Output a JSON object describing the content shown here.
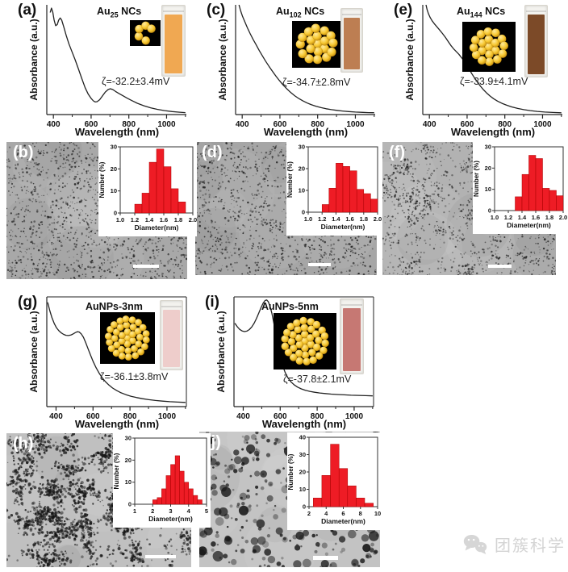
{
  "colors": {
    "bar_red": "#ee1c25",
    "bar_edge": "#a80000",
    "curve": "#222222",
    "axis": "#222222",
    "watermark_gray": "#d4d4d4",
    "gold_light": "#ffeb9e",
    "gold_mid": "#f7c832",
    "gold_dark": "#b97f05"
  },
  "spectra": [
    {
      "panel": "(a)",
      "title_prefix": "Au",
      "title_sub": "25",
      "title_suffix": " NCs",
      "zeta": "ζ=-32.2±3.4mV",
      "xlabel": "Wavelength (nm)",
      "ylabel": "Absorbance (a.u.)",
      "cuvette_color": "#f0a852"
    },
    {
      "panel": "(c)",
      "title_prefix": "Au",
      "title_sub": "102",
      "title_suffix": " NCs",
      "zeta": "ζ=-34.7±2.8mV",
      "xlabel": "Wavelength (nm)",
      "ylabel": "Absorbance (a.u.)",
      "cuvette_color": "#bd7e52"
    },
    {
      "panel": "(e)",
      "title_prefix": "Au",
      "title_sub": "144",
      "title_suffix": " NCs",
      "zeta": "ζ=-33.9±4.1mV",
      "xlabel": "Wavelength (nm)",
      "ylabel": "Absorbance (a.u.)",
      "cuvette_color": "#7c4a28"
    },
    {
      "panel": "(g)",
      "title_prefix": "AuNPs-3nm",
      "title_sub": "",
      "title_suffix": "",
      "zeta": "ζ=-36.1±3.8mV",
      "xlabel": "Wavelength (nm)",
      "ylabel": "Absorbance (a.u.)",
      "cuvette_color": "#eecdcb"
    },
    {
      "panel": "(i)",
      "title_prefix": "AuNPs-5nm",
      "title_sub": "",
      "title_suffix": "",
      "zeta": "ζ=-37.8±2.1mV",
      "xlabel": "Wavelength (nm)",
      "ylabel": "Absorbance (a.u.)",
      "cuvette_color": "#c67873"
    }
  ],
  "tem": [
    {
      "panel": "(b)",
      "bg": "#a8a8a8",
      "texture": "fine"
    },
    {
      "panel": "(d)",
      "bg": "#a6a6a6",
      "texture": "fine"
    },
    {
      "panel": "(f)",
      "bg": "#b2b2b2",
      "texture": "fine2"
    },
    {
      "panel": "(h)",
      "bg": "#c0c0c0",
      "texture": "chains"
    },
    {
      "panel": "(j)",
      "bg": "#c3c3c3",
      "texture": "large"
    }
  ],
  "watermark": {
    "text": "团簇科学"
  },
  "chart_data": [
    {
      "id": "spec-a",
      "type": "line",
      "title": "Au25 NCs",
      "annotation": "ζ=-32.2±3.4mV",
      "xlabel": "Wavelength (nm)",
      "ylabel": "Absorbance (a.u.)",
      "xlim": [
        365,
        1105
      ],
      "xticks": [
        "400",
        "600",
        "800",
        "1000"
      ],
      "xticks_minor": [
        500,
        700,
        900,
        1100
      ],
      "frame": false,
      "points": [
        [
          383,
          0.93
        ],
        [
          390,
          0.97
        ],
        [
          397,
          0.93
        ],
        [
          404,
          0.86
        ],
        [
          412,
          0.81
        ],
        [
          420,
          0.82
        ],
        [
          428,
          0.86
        ],
        [
          436,
          0.88
        ],
        [
          444,
          0.86
        ],
        [
          455,
          0.8
        ],
        [
          468,
          0.72
        ],
        [
          482,
          0.645
        ],
        [
          498,
          0.575
        ],
        [
          515,
          0.5
        ],
        [
          532,
          0.42
        ],
        [
          550,
          0.33
        ],
        [
          568,
          0.245
        ],
        [
          585,
          0.185
        ],
        [
          600,
          0.148
        ],
        [
          612,
          0.125
        ],
        [
          622,
          0.115
        ],
        [
          632,
          0.118
        ],
        [
          645,
          0.135
        ],
        [
          660,
          0.17
        ],
        [
          675,
          0.205
        ],
        [
          690,
          0.228
        ],
        [
          702,
          0.235
        ],
        [
          715,
          0.228
        ],
        [
          730,
          0.21
        ],
        [
          748,
          0.192
        ],
        [
          768,
          0.172
        ],
        [
          790,
          0.15
        ],
        [
          815,
          0.128
        ],
        [
          845,
          0.103
        ],
        [
          880,
          0.08
        ],
        [
          915,
          0.062
        ],
        [
          950,
          0.048
        ],
        [
          990,
          0.036
        ],
        [
          1030,
          0.027
        ],
        [
          1070,
          0.021
        ],
        [
          1100,
          0.018
        ]
      ]
    },
    {
      "id": "spec-c",
      "type": "line",
      "title": "Au102 NCs",
      "annotation": "ζ=-34.7±2.8mV",
      "xlabel": "Wavelength (nm)",
      "ylabel": "Absorbance (a.u.)",
      "xlim": [
        365,
        1105
      ],
      "xticks": [
        "400",
        "600",
        "800",
        "1000"
      ],
      "xticks_minor": [
        500,
        700,
        900,
        1100
      ],
      "frame": false,
      "points": [
        [
          383,
          1.0
        ],
        [
          392,
          0.945
        ],
        [
          402,
          0.895
        ],
        [
          414,
          0.845
        ],
        [
          428,
          0.79
        ],
        [
          443,
          0.735
        ],
        [
          458,
          0.685
        ],
        [
          474,
          0.635
        ],
        [
          490,
          0.585
        ],
        [
          507,
          0.535
        ],
        [
          524,
          0.487
        ],
        [
          542,
          0.44
        ],
        [
          560,
          0.395
        ],
        [
          579,
          0.35
        ],
        [
          598,
          0.308
        ],
        [
          618,
          0.268
        ],
        [
          638,
          0.232
        ],
        [
          658,
          0.2
        ],
        [
          678,
          0.172
        ],
        [
          700,
          0.146
        ],
        [
          722,
          0.124
        ],
        [
          745,
          0.105
        ],
        [
          768,
          0.089
        ],
        [
          792,
          0.075
        ],
        [
          818,
          0.063
        ],
        [
          845,
          0.053
        ],
        [
          873,
          0.045
        ],
        [
          902,
          0.038
        ],
        [
          932,
          0.032
        ],
        [
          965,
          0.027
        ],
        [
          1000,
          0.023
        ],
        [
          1040,
          0.02
        ],
        [
          1070,
          0.018
        ],
        [
          1100,
          0.017
        ]
      ]
    },
    {
      "id": "spec-e",
      "type": "line",
      "title": "Au144 NCs",
      "annotation": "ζ=-33.9±4.1mV",
      "xlabel": "Wavelength (nm)",
      "ylabel": "Absorbance (a.u.)",
      "xlim": [
        365,
        1105
      ],
      "xticks": [
        "400",
        "600",
        "800",
        "1000"
      ],
      "xticks_minor": [
        500,
        700,
        900,
        1100
      ],
      "frame": false,
      "points": [
        [
          382,
          1.0
        ],
        [
          388,
          0.955
        ],
        [
          395,
          0.92
        ],
        [
          404,
          0.885
        ],
        [
          414,
          0.855
        ],
        [
          426,
          0.828
        ],
        [
          440,
          0.8
        ],
        [
          455,
          0.77
        ],
        [
          470,
          0.738
        ],
        [
          485,
          0.703
        ],
        [
          500,
          0.665
        ],
        [
          514,
          0.63
        ],
        [
          528,
          0.6
        ],
        [
          542,
          0.575
        ],
        [
          556,
          0.55
        ],
        [
          570,
          0.52
        ],
        [
          584,
          0.487
        ],
        [
          598,
          0.45
        ],
        [
          612,
          0.41
        ],
        [
          626,
          0.37
        ],
        [
          640,
          0.332
        ],
        [
          655,
          0.295
        ],
        [
          670,
          0.26
        ],
        [
          686,
          0.228
        ],
        [
          703,
          0.198
        ],
        [
          721,
          0.17
        ],
        [
          740,
          0.145
        ],
        [
          762,
          0.122
        ],
        [
          785,
          0.102
        ],
        [
          810,
          0.085
        ],
        [
          838,
          0.069
        ],
        [
          868,
          0.056
        ],
        [
          900,
          0.045
        ],
        [
          935,
          0.036
        ],
        [
          972,
          0.029
        ],
        [
          1012,
          0.023
        ],
        [
          1055,
          0.019
        ],
        [
          1100,
          0.016
        ]
      ]
    },
    {
      "id": "spec-g",
      "type": "line",
      "title": "AuNPs-3nm",
      "annotation": "ζ=-36.1±3.8mV",
      "xlabel": "Wavelength (nm)",
      "ylabel": "Absorbance (a.u.)",
      "xlim": [
        350,
        1105
      ],
      "xticks": [
        "400",
        "600",
        "800",
        "1000"
      ],
      "xticks_minor": [
        500,
        700,
        900,
        1100
      ],
      "frame": true,
      "points": [
        [
          355,
          0.95
        ],
        [
          366,
          0.875
        ],
        [
          378,
          0.81
        ],
        [
          390,
          0.758
        ],
        [
          402,
          0.72
        ],
        [
          415,
          0.692
        ],
        [
          428,
          0.672
        ],
        [
          441,
          0.658
        ],
        [
          454,
          0.65
        ],
        [
          467,
          0.648
        ],
        [
          480,
          0.652
        ],
        [
          492,
          0.662
        ],
        [
          504,
          0.674
        ],
        [
          515,
          0.682
        ],
        [
          525,
          0.68
        ],
        [
          536,
          0.664
        ],
        [
          548,
          0.632
        ],
        [
          560,
          0.585
        ],
        [
          573,
          0.528
        ],
        [
          587,
          0.468
        ],
        [
          601,
          0.41
        ],
        [
          616,
          0.356
        ],
        [
          632,
          0.308
        ],
        [
          649,
          0.265
        ],
        [
          667,
          0.228
        ],
        [
          686,
          0.196
        ],
        [
          706,
          0.169
        ],
        [
          728,
          0.146
        ],
        [
          752,
          0.126
        ],
        [
          778,
          0.109
        ],
        [
          806,
          0.094
        ],
        [
          836,
          0.082
        ],
        [
          868,
          0.072
        ],
        [
          902,
          0.063
        ],
        [
          938,
          0.056
        ],
        [
          976,
          0.05
        ],
        [
          1016,
          0.045
        ],
        [
          1058,
          0.041
        ],
        [
          1100,
          0.038
        ]
      ]
    },
    {
      "id": "spec-i",
      "type": "line",
      "title": "AuNPs-5nm",
      "annotation": "ζ=-37.8±2.1mV",
      "xlabel": "Wavelength (nm)",
      "ylabel": "Absorbance (a.u.)",
      "xlim": [
        350,
        1105
      ],
      "xticks": [
        "400",
        "600",
        "800",
        "1000"
      ],
      "xticks_minor": [
        500,
        700,
        900,
        1100
      ],
      "frame": true,
      "points": [
        [
          355,
          0.76
        ],
        [
          368,
          0.728
        ],
        [
          381,
          0.704
        ],
        [
          394,
          0.69
        ],
        [
          407,
          0.684
        ],
        [
          420,
          0.688
        ],
        [
          433,
          0.702
        ],
        [
          446,
          0.726
        ],
        [
          459,
          0.76
        ],
        [
          472,
          0.805
        ],
        [
          485,
          0.856
        ],
        [
          497,
          0.905
        ],
        [
          508,
          0.944
        ],
        [
          518,
          0.967
        ],
        [
          527,
          0.972
        ],
        [
          536,
          0.955
        ],
        [
          545,
          0.915
        ],
        [
          555,
          0.85
        ],
        [
          565,
          0.765
        ],
        [
          576,
          0.66
        ],
        [
          588,
          0.55
        ],
        [
          600,
          0.452
        ],
        [
          613,
          0.372
        ],
        [
          627,
          0.31
        ],
        [
          642,
          0.262
        ],
        [
          658,
          0.226
        ],
        [
          675,
          0.199
        ],
        [
          694,
          0.178
        ],
        [
          714,
          0.162
        ],
        [
          736,
          0.149
        ],
        [
          760,
          0.139
        ],
        [
          786,
          0.131
        ],
        [
          814,
          0.124
        ],
        [
          844,
          0.119
        ],
        [
          876,
          0.114
        ],
        [
          910,
          0.11
        ],
        [
          946,
          0.107
        ],
        [
          984,
          0.104
        ],
        [
          1024,
          0.102
        ],
        [
          1062,
          0.1
        ],
        [
          1100,
          0.098
        ]
      ]
    },
    {
      "id": "hist-b",
      "type": "bar",
      "xlabel": "Diameter(nm)",
      "ylabel": "Number (%)",
      "xlim": [
        1.0,
        2.0
      ],
      "ylim": [
        0,
        30
      ],
      "xticks": [
        "1.0",
        "1.2",
        "1.4",
        "1.6",
        "1.8",
        "2.0"
      ],
      "yticks": [
        0,
        10,
        20,
        30
      ],
      "bin_start": 1.2,
      "bin_width": 0.1,
      "values": [
        4,
        9,
        23,
        29,
        21,
        11,
        5
      ]
    },
    {
      "id": "hist-d",
      "type": "bar",
      "xlabel": "Diameter(nm)",
      "ylabel": "Number (%)",
      "xlim": [
        1.0,
        2.0
      ],
      "ylim": [
        0,
        30
      ],
      "xticks": [
        "1.0",
        "1.2",
        "1.4",
        "1.6",
        "1.8",
        "2.0"
      ],
      "yticks": [
        0,
        10,
        20,
        30
      ],
      "bin_start": 1.2,
      "bin_width": 0.1,
      "values": [
        3.5,
        11,
        22.5,
        21,
        19,
        10.5,
        8.5,
        6
      ]
    },
    {
      "id": "hist-f",
      "type": "bar",
      "xlabel": "Diameter(nm)",
      "ylabel": "Number (%)",
      "xlim": [
        1.0,
        2.0
      ],
      "ylim": [
        0,
        30
      ],
      "xticks": [
        "1.0",
        "1.2",
        "1.4",
        "1.6",
        "1.8",
        "2.0"
      ],
      "yticks": [
        0,
        10,
        20,
        30
      ],
      "bin_start": 1.3,
      "bin_width": 0.1,
      "values": [
        6.5,
        17,
        26,
        24.5,
        10.5,
        9.5,
        7
      ]
    },
    {
      "id": "hist-h",
      "type": "bar",
      "xlabel": "Diameter(nm)",
      "ylabel": "Number (%)",
      "xlim": [
        1,
        5
      ],
      "ylim": [
        0,
        30
      ],
      "xticks": [
        "1",
        "2",
        "3",
        "4",
        "5"
      ],
      "yticks": [
        0,
        10,
        20,
        30
      ],
      "bin_start": 2.0,
      "bin_width": 0.25,
      "values": [
        2,
        3,
        7,
        13,
        18,
        22,
        15,
        10,
        7,
        4,
        2
      ]
    },
    {
      "id": "hist-j",
      "type": "bar",
      "xlabel": "Diameter(nm)",
      "ylabel": "Number (%)",
      "xlim": [
        2,
        10
      ],
      "ylim": [
        0,
        40
      ],
      "xticks": [
        "2",
        "4",
        "6",
        "8",
        "10"
      ],
      "yticks": [
        0,
        10,
        20,
        30,
        40
      ],
      "bin_start": 2.5,
      "bin_width": 1,
      "values": [
        5,
        18,
        36,
        22,
        12,
        5,
        2
      ]
    }
  ]
}
